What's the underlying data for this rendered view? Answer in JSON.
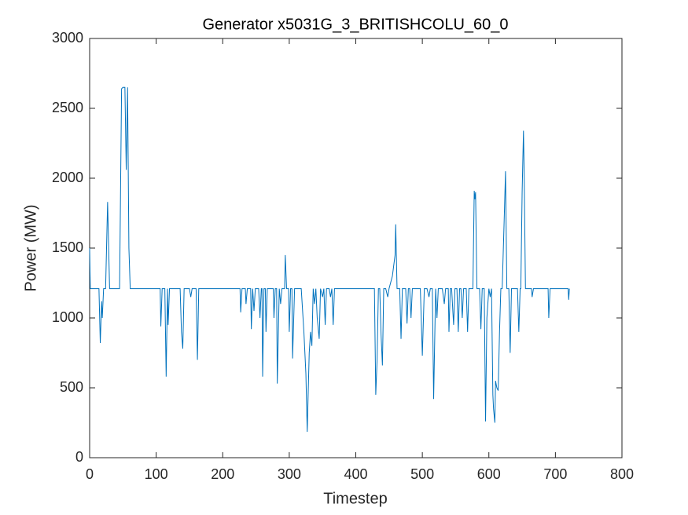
{
  "chart_data": {
    "type": "line",
    "title": "Generator x5031G_3_BRITISHCOLU_60_0",
    "x_label": "Timestep",
    "y_label": "Power (MW)",
    "xlim": [
      0,
      800
    ],
    "xticks": [
      0,
      100,
      200,
      300,
      400,
      500,
      600,
      700,
      800
    ],
    "ylim": [
      0,
      3000
    ],
    "yticks": [
      0,
      500,
      1000,
      1500,
      2000,
      2500,
      3000
    ],
    "grid": false,
    "series": [
      {
        "name": "Power",
        "color": "#0072bd",
        "x": [
          0,
          1,
          14,
          16,
          18,
          19,
          21,
          24,
          27,
          30,
          45,
          48,
          50,
          53,
          55,
          56,
          57,
          59,
          61,
          106,
          107,
          109,
          113,
          115,
          117,
          118,
          120,
          136,
          138,
          140,
          142,
          150,
          152,
          154,
          160,
          162,
          164,
          226,
          227,
          229,
          234,
          235,
          237,
          242,
          243,
          245,
          247,
          249,
          254,
          256,
          258,
          259,
          260,
          262,
          264,
          265,
          267,
          276,
          277,
          279,
          281,
          282,
          285,
          287,
          289,
          293,
          294,
          296,
          299,
          300,
          302,
          304,
          305,
          308,
          318,
          322,
          325,
          327,
          330,
          332,
          334,
          336,
          338,
          340,
          342,
          345,
          347,
          350,
          352,
          354,
          356,
          360,
          362,
          364,
          366,
          368,
          428,
          430,
          432,
          434,
          436,
          438,
          440,
          442,
          445,
          448,
          450,
          455,
          459,
          460,
          462,
          466,
          468,
          470,
          475,
          477,
          479,
          481,
          483,
          485,
          492,
          497,
          500,
          503,
          507,
          510,
          512,
          515,
          517,
          520,
          522,
          524,
          530,
          533,
          535,
          539,
          540,
          542,
          544,
          547,
          549,
          552,
          554,
          556,
          558,
          560,
          562,
          566,
          568,
          570,
          572,
          576,
          578,
          579,
          580,
          582,
          586,
          588,
          590,
          593,
          595,
          597,
          600,
          602,
          604,
          606,
          607,
          609,
          610,
          612,
          614,
          616,
          618,
          620,
          623,
          625,
          627,
          630,
          632,
          634,
          640,
          643,
          645,
          647,
          648,
          650,
          652,
          653,
          655,
          664,
          665,
          667,
          689,
          690,
          692,
          719,
          720,
          721
        ],
        "values": [
          1500,
          1210,
          1210,
          820,
          1120,
          1000,
          1210,
          1210,
          1830,
          1210,
          1210,
          2640,
          2650,
          2650,
          2060,
          2350,
          2650,
          1500,
          1210,
          1210,
          940,
          1210,
          1210,
          580,
          1210,
          950,
          1210,
          1210,
          900,
          780,
          1210,
          1210,
          1150,
          1210,
          1210,
          700,
          1210,
          1210,
          1040,
          1210,
          1210,
          1100,
          1210,
          1210,
          920,
          1210,
          1050,
          1210,
          1210,
          1000,
          1210,
          1210,
          580,
          1210,
          1210,
          900,
          1210,
          1210,
          1000,
          1210,
          1210,
          530,
          1210,
          1100,
          1210,
          1210,
          1450,
          1210,
          1210,
          900,
          1210,
          1210,
          710,
          1210,
          1210,
          900,
          600,
          185,
          750,
          900,
          800,
          1210,
          1100,
          1210,
          1000,
          850,
          1210,
          1150,
          1210,
          950,
          1210,
          1210,
          1150,
          1210,
          950,
          1210,
          1210,
          450,
          700,
          1210,
          1210,
          880,
          660,
          1210,
          1210,
          1150,
          1210,
          1300,
          1450,
          1670,
          1210,
          1210,
          850,
          1210,
          1210,
          960,
          1210,
          1210,
          1000,
          1210,
          1210,
          1210,
          730,
          1210,
          1210,
          1150,
          1210,
          1210,
          420,
          1210,
          1000,
          1210,
          1210,
          1100,
          1210,
          1210,
          900,
          1210,
          1210,
          950,
          1210,
          1210,
          900,
          1210,
          1210,
          1000,
          1210,
          1210,
          900,
          1210,
          1210,
          1210,
          1910,
          1850,
          1900,
          1210,
          1210,
          920,
          1210,
          1210,
          260,
          1000,
          1210,
          1150,
          1210,
          450,
          350,
          250,
          550,
          500,
          480,
          900,
          1210,
          1210,
          1700,
          2050,
          1210,
          1210,
          750,
          1210,
          1210,
          1210,
          900,
          1210,
          1210,
          1900,
          2340,
          2050,
          1210,
          1210,
          1150,
          1210,
          1210,
          1000,
          1210,
          1210,
          1130,
          1210
        ]
      }
    ]
  }
}
